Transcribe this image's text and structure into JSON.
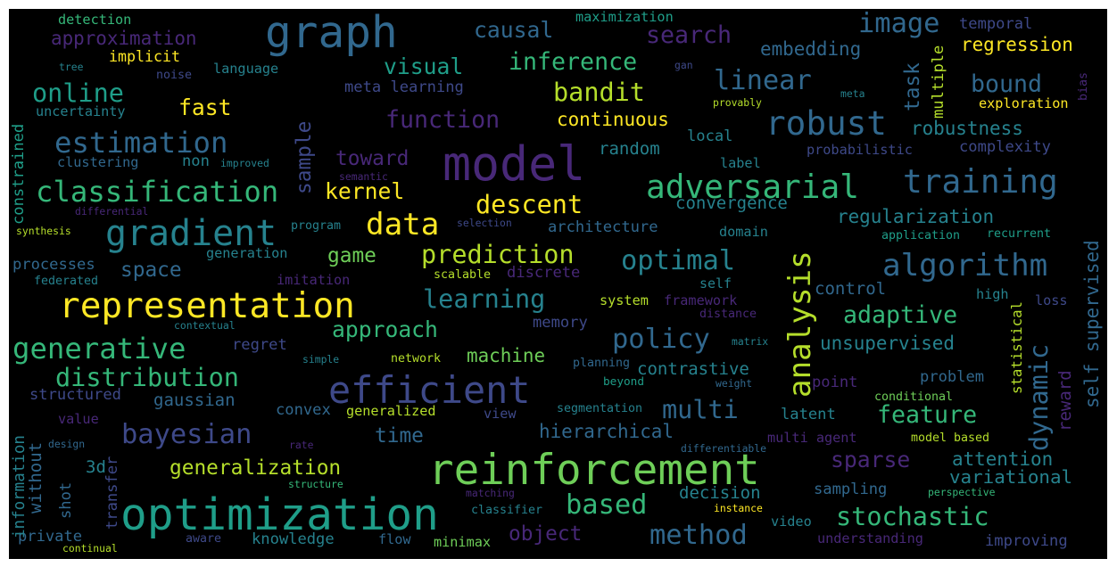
{
  "palette": {
    "background": "#000000",
    "yellow": "#fde725",
    "lightgreen": "#b5de2b",
    "green": "#6ece58",
    "teal": "#35b779",
    "cyan": "#1f9e89",
    "blue": "#26828e",
    "steel": "#31688e",
    "indigo": "#3e4989",
    "purple": "#482878",
    "darkpurple": "#440154"
  },
  "words": [
    {
      "text": "graph",
      "color": "#31688e"
    },
    {
      "text": "model",
      "color": "#482878"
    },
    {
      "text": "reinforcement",
      "color": "#6ece58"
    },
    {
      "text": "optimization",
      "color": "#1f9e89"
    },
    {
      "text": "representation",
      "color": "#fde725"
    },
    {
      "text": "efficient",
      "color": "#3e4989"
    },
    {
      "text": "gradient",
      "color": "#26828e"
    },
    {
      "text": "adversarial",
      "color": "#35b779"
    },
    {
      "text": "training",
      "color": "#31688e"
    },
    {
      "text": "algorithm",
      "color": "#31688e"
    },
    {
      "text": "data",
      "color": "#fde725"
    },
    {
      "text": "robust",
      "color": "#31688e"
    },
    {
      "text": "analysis",
      "color": "#b5de2b"
    },
    {
      "text": "dynamic",
      "color": "#31688e"
    },
    {
      "text": "classification",
      "color": "#35b779"
    },
    {
      "text": "estimation",
      "color": "#31688e"
    },
    {
      "text": "generative",
      "color": "#35b779"
    },
    {
      "text": "distribution",
      "color": "#35b779"
    },
    {
      "text": "bayesian",
      "color": "#3e4989"
    },
    {
      "text": "based",
      "color": "#35b779"
    },
    {
      "text": "prediction",
      "color": "#b5de2b"
    },
    {
      "text": "optimal",
      "color": "#26828e"
    },
    {
      "text": "linear",
      "color": "#31688e"
    },
    {
      "text": "online",
      "color": "#1f9e89"
    },
    {
      "text": "function",
      "color": "#482878"
    },
    {
      "text": "inference",
      "color": "#35b779"
    },
    {
      "text": "image",
      "color": "#31688e"
    },
    {
      "text": "method",
      "color": "#31688e"
    },
    {
      "text": "stochastic",
      "color": "#35b779"
    },
    {
      "text": "multi",
      "color": "#31688e"
    },
    {
      "text": "policy",
      "color": "#31688e"
    },
    {
      "text": "adaptive",
      "color": "#35b779"
    },
    {
      "text": "feature",
      "color": "#35b779"
    },
    {
      "text": "descent",
      "color": "#fde725"
    },
    {
      "text": "bandit",
      "color": "#b5de2b"
    },
    {
      "text": "learning",
      "color": "#26828e"
    },
    {
      "text": "sample",
      "color": "#3e4989"
    },
    {
      "text": "self supervised",
      "color": "#31688e"
    },
    {
      "text": "kernel",
      "color": "#fde725"
    },
    {
      "text": "fast",
      "color": "#fde725"
    },
    {
      "text": "search",
      "color": "#482878"
    },
    {
      "text": "causal",
      "color": "#31688e"
    },
    {
      "text": "approximation",
      "color": "#482878"
    },
    {
      "text": "space",
      "color": "#31688e"
    },
    {
      "text": "approach",
      "color": "#35b779"
    },
    {
      "text": "sparse",
      "color": "#482878"
    },
    {
      "text": "generalization",
      "color": "#b5de2b"
    },
    {
      "text": "time",
      "color": "#31688e"
    },
    {
      "text": "toward",
      "color": "#482878"
    },
    {
      "text": "continuous",
      "color": "#fde725"
    },
    {
      "text": "regularization",
      "color": "#26828e"
    },
    {
      "text": "hierarchical",
      "color": "#31688e"
    },
    {
      "text": "unsupervised",
      "color": "#26828e"
    },
    {
      "text": "bound",
      "color": "#31688e"
    },
    {
      "text": "visual",
      "color": "#1f9e89"
    },
    {
      "text": "embedding",
      "color": "#31688e"
    },
    {
      "text": "regression",
      "color": "#fde725"
    },
    {
      "text": "attention",
      "color": "#26828e"
    },
    {
      "text": "variational",
      "color": "#26828e"
    },
    {
      "text": "robustness",
      "color": "#26828e"
    },
    {
      "text": "task",
      "color": "#31688e"
    },
    {
      "text": "game",
      "color": "#6ece58"
    },
    {
      "text": "object",
      "color": "#482878"
    },
    {
      "text": "convergence",
      "color": "#26828e"
    },
    {
      "text": "machine",
      "color": "#6ece58"
    },
    {
      "text": "contrastive",
      "color": "#26828e"
    },
    {
      "text": "gaussian",
      "color": "#31688e"
    },
    {
      "text": "decision",
      "color": "#26828e"
    },
    {
      "text": "sampling",
      "color": "#31688e"
    },
    {
      "text": "knowledge",
      "color": "#26828e"
    },
    {
      "text": "latent",
      "color": "#26828e"
    },
    {
      "text": "control",
      "color": "#31688e"
    },
    {
      "text": "self",
      "color": "#26828e"
    },
    {
      "text": "random",
      "color": "#26828e"
    },
    {
      "text": "private",
      "color": "#31688e"
    },
    {
      "text": "implicit",
      "color": "#fde725"
    },
    {
      "text": "structured",
      "color": "#3e4989"
    },
    {
      "text": "processes",
      "color": "#31688e"
    },
    {
      "text": "improving",
      "color": "#3e4989"
    },
    {
      "text": "3d",
      "color": "#26828e"
    },
    {
      "text": "understanding",
      "color": "#482878"
    },
    {
      "text": "problem",
      "color": "#31688e"
    },
    {
      "text": "point",
      "color": "#482878"
    },
    {
      "text": "architecture",
      "color": "#31688e"
    },
    {
      "text": "local",
      "color": "#26828e"
    },
    {
      "text": "complexity",
      "color": "#3e4989"
    },
    {
      "text": "exploration",
      "color": "#fde725"
    },
    {
      "text": "temporal",
      "color": "#3e4989"
    },
    {
      "text": "maximization",
      "color": "#1f9e89"
    },
    {
      "text": "detection",
      "color": "#35b779"
    },
    {
      "text": "meta learning",
      "color": "#3e4989"
    },
    {
      "text": "regret",
      "color": "#3e4989"
    },
    {
      "text": "memory",
      "color": "#3e4989"
    },
    {
      "text": "clustering",
      "color": "#31688e"
    },
    {
      "text": "non",
      "color": "#26828e"
    },
    {
      "text": "label",
      "color": "#26828e"
    },
    {
      "text": "uncertainty",
      "color": "#26828e"
    },
    {
      "text": "language",
      "color": "#26828e"
    },
    {
      "text": "flow",
      "color": "#31688e"
    },
    {
      "text": "minimax",
      "color": "#6ece58"
    },
    {
      "text": "video",
      "color": "#26828e"
    },
    {
      "text": "beyond",
      "color": "#1f9e89"
    },
    {
      "text": "convex",
      "color": "#31688e"
    },
    {
      "text": "generalized",
      "color": "#b5de2b"
    },
    {
      "text": "view",
      "color": "#3e4989"
    },
    {
      "text": "segmentation",
      "color": "#26828e"
    },
    {
      "text": "multi agent",
      "color": "#482878"
    },
    {
      "text": "model based",
      "color": "#b5de2b"
    },
    {
      "text": "loss",
      "color": "#3e4989"
    },
    {
      "text": "high",
      "color": "#26828e"
    },
    {
      "text": "framework",
      "color": "#482878"
    },
    {
      "text": "distance",
      "color": "#482878"
    },
    {
      "text": "system",
      "color": "#b5de2b"
    },
    {
      "text": "generation",
      "color": "#26828e"
    },
    {
      "text": "discrete",
      "color": "#482878"
    },
    {
      "text": "imitation",
      "color": "#482878"
    },
    {
      "text": "scalable",
      "color": "#b5de2b"
    },
    {
      "text": "federated",
      "color": "#26828e"
    },
    {
      "text": "domain",
      "color": "#26828e"
    },
    {
      "text": "probabilistic",
      "color": "#3e4989"
    },
    {
      "text": "application",
      "color": "#1f9e89"
    },
    {
      "text": "recurrent",
      "color": "#1f9e89"
    },
    {
      "text": "selection",
      "color": "#3e4989"
    },
    {
      "text": "program",
      "color": "#26828e"
    },
    {
      "text": "synthesis",
      "color": "#b5de2b"
    },
    {
      "text": "differential",
      "color": "#482878"
    },
    {
      "text": "semantic",
      "color": "#482878"
    },
    {
      "text": "improved",
      "color": "#26828e"
    },
    {
      "text": "contextual",
      "color": "#26828e"
    },
    {
      "text": "simple",
      "color": "#26828e"
    },
    {
      "text": "network",
      "color": "#b5de2b"
    },
    {
      "text": "planning",
      "color": "#31688e"
    },
    {
      "text": "matrix",
      "color": "#26828e"
    },
    {
      "text": "weight",
      "color": "#31688e"
    },
    {
      "text": "conditional",
      "color": "#6ece58"
    },
    {
      "text": "statistical",
      "color": "#b5de2b"
    },
    {
      "text": "reward",
      "color": "#482878"
    },
    {
      "text": "value",
      "color": "#482878"
    },
    {
      "text": "design",
      "color": "#31688e"
    },
    {
      "text": "rate",
      "color": "#482878"
    },
    {
      "text": "differentiable",
      "color": "#31688e"
    },
    {
      "text": "structure",
      "color": "#35b779"
    },
    {
      "text": "matching",
      "color": "#482878"
    },
    {
      "text": "classifier",
      "color": "#26828e"
    },
    {
      "text": "instance",
      "color": "#fde725"
    },
    {
      "text": "perspective",
      "color": "#35b779"
    },
    {
      "text": "aware",
      "color": "#3e4989"
    },
    {
      "text": "continual",
      "color": "#b5de2b"
    },
    {
      "text": "shot",
      "color": "#31688e"
    },
    {
      "text": "transfer",
      "color": "#3e4989"
    },
    {
      "text": "without",
      "color": "#31688e"
    },
    {
      "text": "information",
      "color": "#26828e"
    },
    {
      "text": "constrained",
      "color": "#1f9e89"
    },
    {
      "text": "multiple",
      "color": "#b5de2b"
    },
    {
      "text": "bias",
      "color": "#482878"
    },
    {
      "text": "noise",
      "color": "#3e4989"
    },
    {
      "text": "tree",
      "color": "#26828e"
    },
    {
      "text": "gan",
      "color": "#3e4989"
    },
    {
      "text": "meta",
      "color": "#26828e"
    },
    {
      "text": "provably",
      "color": "#b5de2b"
    }
  ]
}
